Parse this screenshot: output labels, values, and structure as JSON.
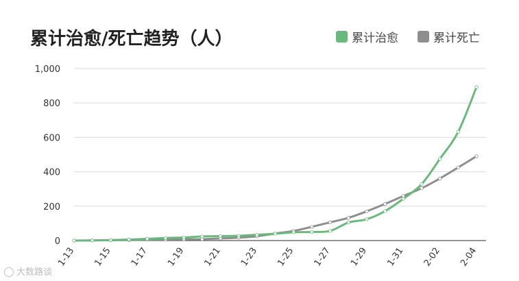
{
  "chart_data": {
    "type": "line",
    "title": "累计治愈/死亡趋势（人）",
    "xlabel": "",
    "ylabel": "",
    "x": [
      "1-13",
      "1-14",
      "1-15",
      "1-16",
      "1-17",
      "1-18",
      "1-19",
      "1-20",
      "1-21",
      "1-22",
      "1-23",
      "1-24",
      "1-25",
      "1-26",
      "1-27",
      "1-28",
      "1-29",
      "1-30",
      "1-31",
      "2-01",
      "2-02",
      "2-03",
      "2-04"
    ],
    "x_tick_labels": [
      "1-13",
      "1-15",
      "1-17",
      "1-19",
      "1-21",
      "1-23",
      "1-25",
      "1-27",
      "1-29",
      "1-31",
      "2-02",
      "2-04"
    ],
    "ylim": [
      0,
      1000
    ],
    "y_ticks": [
      0,
      200,
      400,
      600,
      800,
      1000
    ],
    "y_tick_labels": [
      "0",
      "200",
      "400",
      "600",
      "800",
      "1,000"
    ],
    "grid": true,
    "legend_position": "top-right",
    "series": [
      {
        "name": "累计治愈",
        "color": "#6ab97c",
        "values": [
          0,
          1,
          3,
          6,
          10,
          15,
          18,
          24,
          26,
          28,
          34,
          40,
          48,
          50,
          56,
          105,
          124,
          171,
          243,
          328,
          475,
          632,
          892
        ]
      },
      {
        "name": "累计死亡",
        "color": "#8e8e8e",
        "values": [
          0,
          1,
          2,
          3,
          5,
          6,
          7,
          8,
          12,
          17,
          25,
          41,
          56,
          80,
          106,
          132,
          170,
          213,
          259,
          304,
          361,
          425,
          490
        ]
      }
    ]
  },
  "watermark": {
    "text": "大数路谈"
  }
}
